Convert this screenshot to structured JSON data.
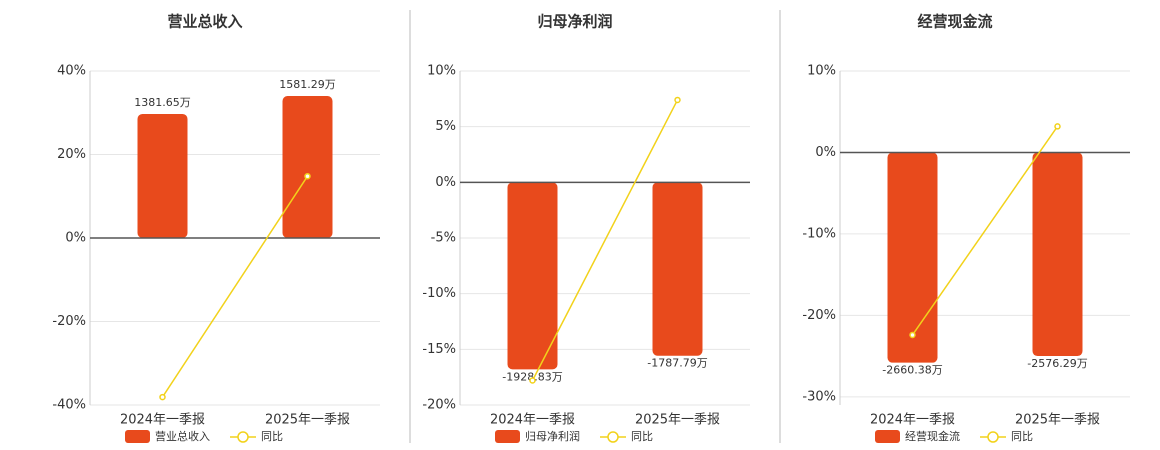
{
  "chart_data": [
    {
      "type": "bar",
      "title": "营业总收入",
      "categories": [
        "2024年一季报",
        "2025年一季报"
      ],
      "series": [
        {
          "name": "营业总收入",
          "type": "bar",
          "axis": "y2",
          "color": "#e84a1c",
          "values": [
            1381.65,
            1581.29
          ],
          "value_labels": [
            "1381.65万",
            "1581.29万"
          ]
        },
        {
          "name": "同比",
          "type": "line",
          "color": "#f2d21b",
          "values": [
            -38.1,
            14.8
          ]
        }
      ],
      "ylim": [
        -40,
        40
      ],
      "yticks": [
        {
          "value": -40,
          "label": "-40%"
        },
        {
          "value": -20,
          "label": "-20%"
        },
        {
          "value": 0,
          "label": "0%"
        },
        {
          "value": 20,
          "label": "20%"
        },
        {
          "value": 40,
          "label": "40%"
        }
      ],
      "y2lim": [
        -1860,
        1860
      ],
      "grid": true,
      "legend": "bottom"
    },
    {
      "type": "bar",
      "title": "归母净利润",
      "categories": [
        "2024年一季报",
        "2025年一季报"
      ],
      "series": [
        {
          "name": "归母净利润",
          "type": "bar",
          "axis": "y2",
          "color": "#e84a1c",
          "values": [
            -1928.83,
            -1787.79
          ],
          "value_labels": [
            "-1928.83万",
            "-1787.79万"
          ]
        },
        {
          "name": "同比",
          "type": "line",
          "color": "#f2d21b",
          "values": [
            -17.8,
            7.4
          ]
        }
      ],
      "ylim": [
        -20,
        10
      ],
      "yticks": [
        {
          "value": -20,
          "label": "-20%"
        },
        {
          "value": -15,
          "label": "-15%"
        },
        {
          "value": -10,
          "label": "-10%"
        },
        {
          "value": -5,
          "label": "-5%"
        },
        {
          "value": 0,
          "label": "0%"
        },
        {
          "value": 5,
          "label": "5%"
        },
        {
          "value": 10,
          "label": "10%"
        }
      ],
      "y2lim": [
        -2296,
        1148
      ],
      "grid": true,
      "legend": "bottom"
    },
    {
      "type": "bar",
      "title": "经营现金流",
      "categories": [
        "2024年一季报",
        "2025年一季报"
      ],
      "series": [
        {
          "name": "经营现金流",
          "type": "bar",
          "axis": "y2",
          "color": "#e84a1c",
          "values": [
            -2660.38,
            -2576.29
          ],
          "value_labels": [
            "-2660.38万",
            "-2576.29万"
          ]
        },
        {
          "name": "同比",
          "type": "line",
          "color": "#f2d21b",
          "values": [
            -22.4,
            3.2
          ]
        }
      ],
      "ylim": [
        -31,
        10
      ],
      "yticks": [
        {
          "value": -30,
          "label": "-30%"
        },
        {
          "value": -20,
          "label": "-20%"
        },
        {
          "value": -10,
          "label": "-10%"
        },
        {
          "value": 0,
          "label": "0%"
        },
        {
          "value": 10,
          "label": "10%"
        }
      ],
      "y2lim": [
        -3196,
        1031
      ],
      "grid": true,
      "legend": "bottom"
    }
  ]
}
